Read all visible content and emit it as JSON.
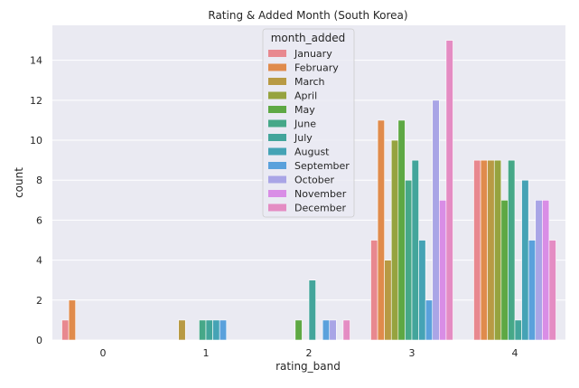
{
  "chart_data": {
    "type": "bar",
    "title": "Rating & Added Month (South Korea)",
    "xlabel": "rating_band",
    "ylabel": "count",
    "categories": [
      "0",
      "1",
      "2",
      "3",
      "4"
    ],
    "ylim": [
      0,
      15.75
    ],
    "yticks": [
      0,
      2,
      4,
      6,
      8,
      10,
      12,
      14
    ],
    "grid": true,
    "legend": {
      "title": "month_added",
      "position": "top-center"
    },
    "series": [
      {
        "name": "January",
        "color": "#e8888f",
        "values": [
          1,
          0,
          0,
          5,
          9
        ]
      },
      {
        "name": "February",
        "color": "#e08b4c",
        "values": [
          2,
          0,
          0,
          11,
          9
        ]
      },
      {
        "name": "March",
        "color": "#b89a44",
        "values": [
          0,
          1,
          0,
          4,
          9
        ]
      },
      {
        "name": "April",
        "color": "#96a33f",
        "values": [
          0,
          0,
          0,
          10,
          9
        ]
      },
      {
        "name": "May",
        "color": "#5ea844",
        "values": [
          0,
          0,
          1,
          11,
          7
        ]
      },
      {
        "name": "June",
        "color": "#46a888",
        "values": [
          0,
          1,
          0,
          8,
          9
        ]
      },
      {
        "name": "July",
        "color": "#43a59b",
        "values": [
          0,
          1,
          3,
          9,
          1
        ]
      },
      {
        "name": "August",
        "color": "#45a3b5",
        "values": [
          0,
          1,
          0,
          5,
          8
        ]
      },
      {
        "name": "September",
        "color": "#5aa1dc",
        "values": [
          0,
          1,
          1,
          2,
          5
        ]
      },
      {
        "name": "October",
        "color": "#a9a5e6",
        "values": [
          0,
          0,
          1,
          12,
          7
        ]
      },
      {
        "name": "November",
        "color": "#d98de6",
        "values": [
          0,
          0,
          0,
          7,
          7
        ]
      },
      {
        "name": "December",
        "color": "#e48cc3",
        "values": [
          0,
          0,
          1,
          15,
          5
        ]
      }
    ]
  }
}
